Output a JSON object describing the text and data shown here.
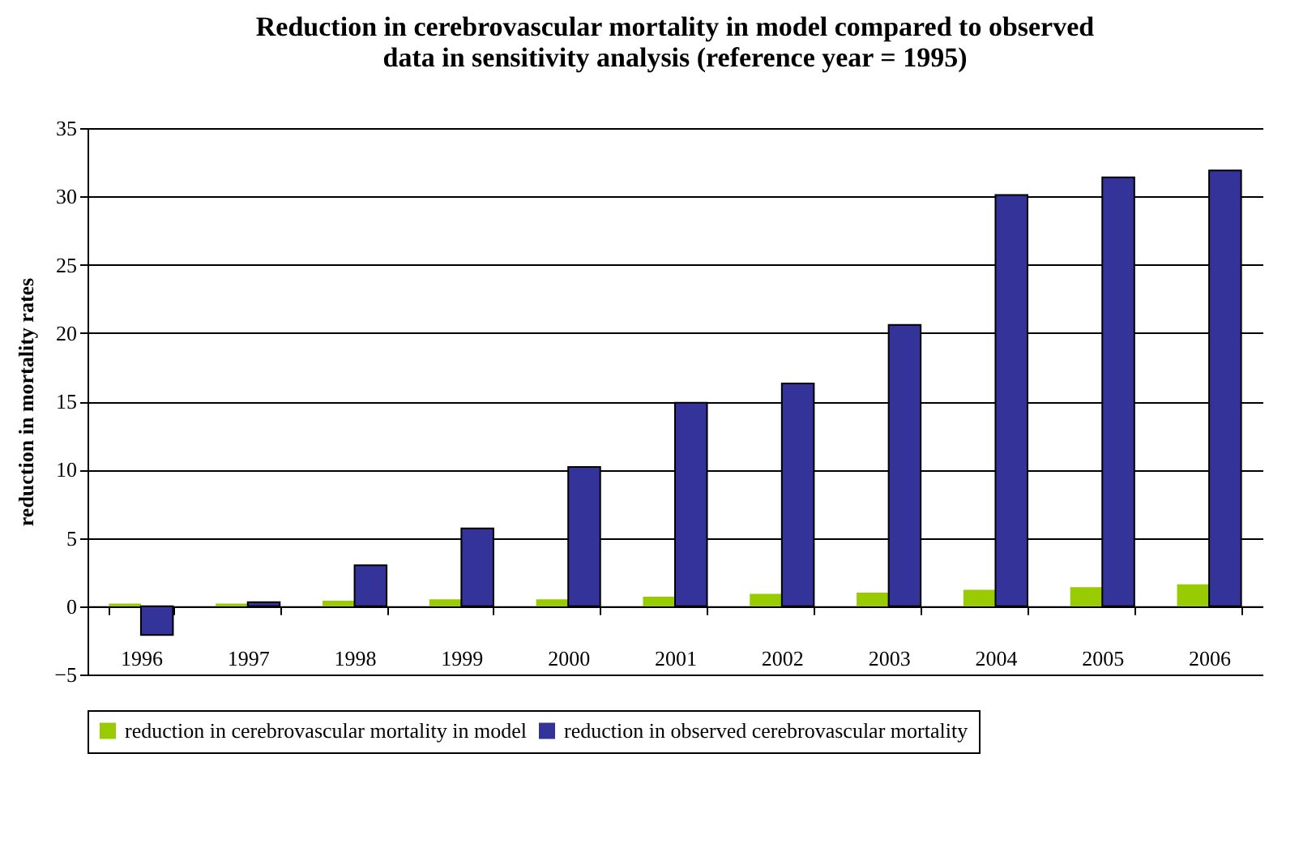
{
  "chart_data": {
    "type": "bar",
    "title": "Reduction in cerebrovascular mortality in model compared to observed data in sensitivity analysis (reference year = 1995)",
    "ylabel": "reduction in mortality rates",
    "categories": [
      "1996",
      "1997",
      "1998",
      "1999",
      "2000",
      "2001",
      "2002",
      "2003",
      "2004",
      "2005",
      "2006"
    ],
    "series": [
      {
        "name": "reduction in cerebrovascular mortality in model",
        "color": "#99cc00",
        "values": [
          0.2,
          0.2,
          0.4,
          0.5,
          0.5,
          0.7,
          0.9,
          1.0,
          1.2,
          1.4,
          1.6
        ]
      },
      {
        "name": "reduction in observed cerebrovascular mortality",
        "color": "#333399",
        "values": [
          -2.1,
          0.3,
          3.0,
          5.7,
          10.2,
          14.9,
          16.3,
          20.6,
          30.1,
          31.4,
          31.9
        ]
      }
    ],
    "ylim": [
      -5,
      35
    ],
    "yticks": [
      -5,
      0,
      5,
      10,
      15,
      20,
      25,
      30,
      35
    ],
    "grid": "y",
    "legend": "bottom"
  }
}
